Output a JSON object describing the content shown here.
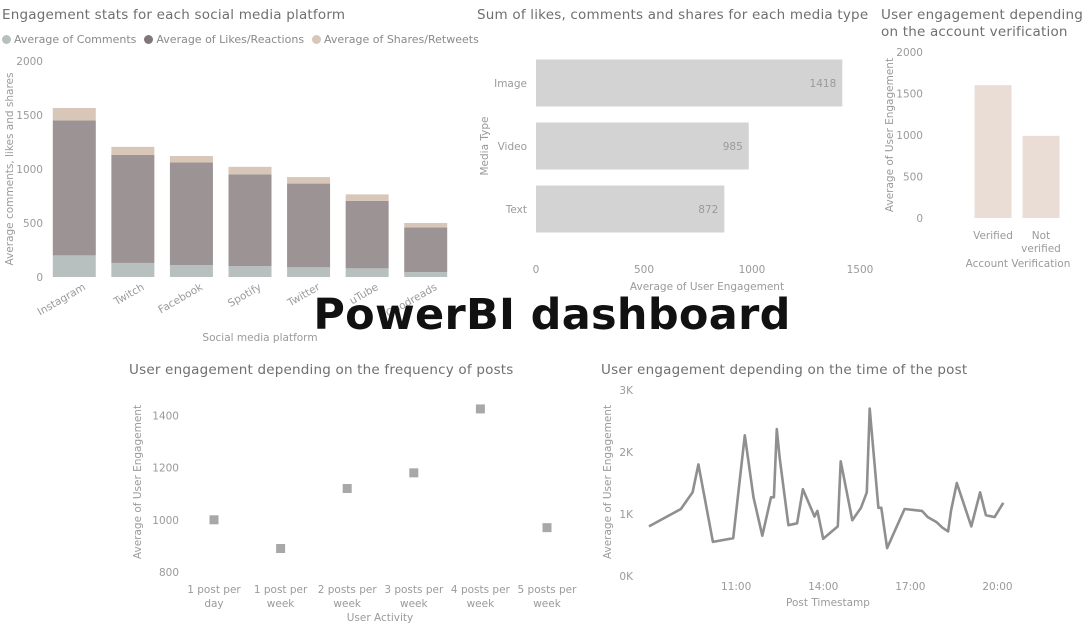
{
  "overlay_title": "PowerBI dashboard",
  "colors": {
    "comments": "#b8bfbf",
    "likes": "#9c9494",
    "shares": "#d8c6b8",
    "media_bar": "#d3d3d3",
    "verify_bar": "#e9ddd5",
    "scatter": "#a8a8a8",
    "line": "#8f8f8f"
  },
  "chart_data": [
    {
      "id": "platform",
      "type": "bar",
      "stacked": true,
      "title": "Engagement stats for each social media platform",
      "xlabel": "Social media platform",
      "ylabel": "Average comments, likes and shares",
      "categories": [
        "Instagram",
        "Twitch",
        "Facebook",
        "Spotify",
        "Twitter",
        "YouTube",
        "Goodreads"
      ],
      "category_labels_visible": [
        "Instagram",
        "Twitch",
        "Facebook",
        "Spotify",
        "Twitter",
        "uTube",
        "Goodreads"
      ],
      "series": [
        {
          "name": "Average of Comments",
          "values": [
            200,
            130,
            110,
            100,
            90,
            80,
            45
          ]
        },
        {
          "name": "Average of Likes/Reactions",
          "values": [
            1250,
            1000,
            950,
            850,
            775,
            625,
            415
          ]
        },
        {
          "name": "Average of Shares/Retweets",
          "values": [
            115,
            75,
            60,
            70,
            60,
            60,
            40
          ]
        }
      ],
      "ylim": [
        0,
        2000
      ],
      "yticks": [
        "0",
        "500",
        "1000",
        "1500",
        "2000"
      ],
      "legend": "top-left"
    },
    {
      "id": "media",
      "type": "bar",
      "orientation": "horizontal",
      "title": "Sum of likes, comments and shares for each media type",
      "xlabel": "Average of User Engagement",
      "ylabel": "Media Type",
      "categories": [
        "Image",
        "Video",
        "Text"
      ],
      "values": [
        1418,
        985,
        872
      ],
      "value_labels": [
        "1418",
        "985",
        "872"
      ],
      "xlim": [
        0,
        1500
      ],
      "xticks": [
        "0",
        "500",
        "1000",
        "1500"
      ]
    },
    {
      "id": "verify",
      "type": "bar",
      "title": "User engagement depending on the account verification",
      "xlabel": "Account Verification",
      "ylabel": "Average of User Engagement",
      "categories": [
        "Verified",
        "Not verified"
      ],
      "values": [
        1600,
        990
      ],
      "ylim": [
        0,
        2000
      ],
      "yticks": [
        "0",
        "500",
        "1000",
        "1500",
        "2000"
      ]
    },
    {
      "id": "frequency",
      "type": "scatter",
      "title": "User engagement depending on the frequency of posts",
      "xlabel": "User Activity",
      "ylabel": "Average of User Engagement",
      "categories": [
        "1 post per day",
        "1 post per week",
        "2 posts per week",
        "3 posts per week",
        "4 posts per week",
        "5 posts per week"
      ],
      "values": [
        1000,
        890,
        1120,
        1180,
        1425,
        970
      ],
      "ylim": [
        800,
        1440
      ],
      "yticks": [
        "800",
        "1000",
        "1200",
        "1400"
      ]
    },
    {
      "id": "time",
      "type": "line",
      "title": "User engagement depending on the time of the post",
      "xlabel": "Post Timestamp",
      "ylabel": "Average of User Engagement",
      "x_hours": [
        8.0,
        9.1,
        9.5,
        9.7,
        10.2,
        10.9,
        11.3,
        11.6,
        11.9,
        12.2,
        12.3,
        12.4,
        12.5,
        12.8,
        13.1,
        13.3,
        13.7,
        13.8,
        14.0,
        14.5,
        14.6,
        15.0,
        15.3,
        15.5,
        15.6,
        15.9,
        16.0,
        16.2,
        16.8,
        17.4,
        17.6,
        17.9,
        18.1,
        18.3,
        18.4,
        18.6,
        19.1,
        19.4,
        19.6,
        19.9,
        20.2
      ],
      "values": [
        800,
        1080,
        1350,
        1800,
        550,
        610,
        2270,
        1270,
        650,
        1270,
        1270,
        2370,
        1900,
        820,
        850,
        1400,
        960,
        1050,
        600,
        800,
        1850,
        900,
        1100,
        1350,
        2700,
        1100,
        1100,
        450,
        1080,
        1050,
        950,
        870,
        780,
        720,
        1050,
        1500,
        800,
        1350,
        980,
        950,
        1180
      ],
      "ylim": [
        0,
        3000
      ],
      "yticks": [
        "0K",
        "1K",
        "2K",
        "3K"
      ],
      "xlim_hours": [
        8.0,
        20.5
      ],
      "xticks": [
        "11:00",
        "14:00",
        "17:00",
        "20:00"
      ],
      "xtick_hours": [
        11,
        14,
        17,
        20
      ]
    }
  ]
}
